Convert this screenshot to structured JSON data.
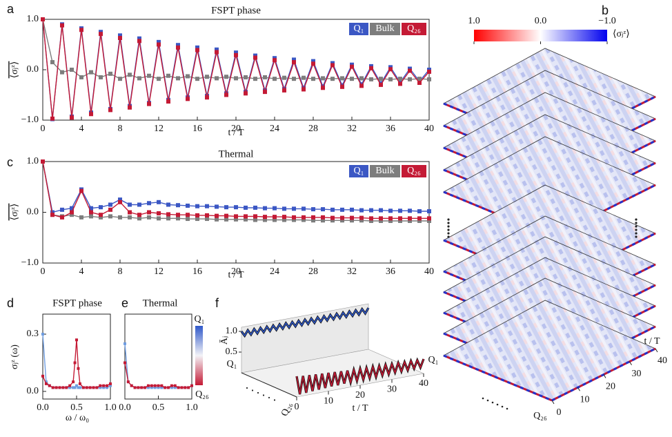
{
  "chart_data": [
    {
      "type": "line",
      "panel": "a",
      "title": "FSPT phase",
      "xlabel": "t / T",
      "ylabel": "⟨σⱼᶻ⟩",
      "x": [
        0,
        1,
        2,
        3,
        4,
        5,
        6,
        7,
        8,
        9,
        10,
        11,
        12,
        13,
        14,
        15,
        16,
        17,
        18,
        19,
        20,
        21,
        22,
        23,
        24,
        25,
        26,
        27,
        28,
        29,
        30,
        31,
        32,
        33,
        34,
        35,
        36,
        37,
        38,
        39,
        40
      ],
      "xlim": [
        0,
        40
      ],
      "xticks": [
        0,
        4,
        8,
        12,
        16,
        20,
        24,
        28,
        32,
        36,
        40
      ],
      "ylim": [
        -1,
        1
      ],
      "yticks": [
        {
          "value": -1,
          "label": "−1.0"
        },
        {
          "value": 0,
          "label": "0.0"
        },
        {
          "value": 1,
          "label": "1.0"
        }
      ],
      "legend": "upper right",
      "series": [
        {
          "name": "Q₁",
          "color": "#3b57c4",
          "values": [
            1.0,
            -0.98,
            0.9,
            -0.93,
            0.82,
            -0.85,
            0.75,
            -0.78,
            0.68,
            -0.72,
            0.62,
            -0.66,
            0.55,
            -0.6,
            0.49,
            -0.55,
            0.44,
            -0.52,
            0.4,
            -0.47,
            0.34,
            -0.44,
            0.28,
            -0.41,
            0.23,
            -0.38,
            0.2,
            -0.36,
            0.17,
            -0.33,
            0.13,
            -0.31,
            0.1,
            -0.29,
            0.07,
            -0.27,
            0.05,
            -0.25,
            0.02,
            -0.23,
            0.0
          ]
        },
        {
          "name": "Bulk",
          "color": "#7d7d7d",
          "values": [
            1.0,
            0.15,
            -0.05,
            0.0,
            -0.15,
            -0.05,
            -0.15,
            -0.08,
            -0.18,
            -0.1,
            -0.17,
            -0.12,
            -0.18,
            -0.12,
            -0.17,
            -0.13,
            -0.18,
            -0.14,
            -0.17,
            -0.14,
            -0.17,
            -0.15,
            -0.18,
            -0.15,
            -0.18,
            -0.16,
            -0.18,
            -0.16,
            -0.18,
            -0.17,
            -0.18,
            -0.17,
            -0.18,
            -0.17,
            -0.19,
            -0.18,
            -0.19,
            -0.18,
            -0.19,
            -0.18,
            -0.19
          ]
        },
        {
          "name": "Q₂₆",
          "color": "#c41a35",
          "values": [
            1.0,
            -0.97,
            0.88,
            -0.95,
            0.79,
            -0.88,
            0.71,
            -0.8,
            0.63,
            -0.75,
            0.57,
            -0.68,
            0.5,
            -0.63,
            0.44,
            -0.58,
            0.39,
            -0.55,
            0.35,
            -0.5,
            0.29,
            -0.47,
            0.24,
            -0.44,
            0.19,
            -0.41,
            0.15,
            -0.39,
            0.12,
            -0.36,
            0.09,
            -0.34,
            0.06,
            -0.32,
            0.03,
            -0.3,
            0.01,
            -0.28,
            -0.02,
            -0.26,
            -0.04
          ]
        }
      ]
    },
    {
      "type": "heatmap",
      "panel": "b",
      "colorbar_label": "⟨σⱼᶻ⟩",
      "clim": [
        1,
        -1
      ],
      "cticks": [
        {
          "value": 1,
          "label": "1.0"
        },
        {
          "value": 0,
          "label": "0.0"
        },
        {
          "value": -1,
          "label": "−1.0"
        }
      ],
      "xlabel": "t / T",
      "xlim": [
        0,
        40
      ],
      "xticks": [
        0,
        10,
        20,
        30,
        40
      ],
      "row_labels": [
        "Q₁",
        "Q₂₆"
      ]
    },
    {
      "type": "line",
      "panel": "c",
      "title": "Thermal",
      "xlabel": "t / T",
      "ylabel": "⟨σⱼᶻ⟩",
      "x": [
        0,
        1,
        2,
        3,
        4,
        5,
        6,
        7,
        8,
        9,
        10,
        11,
        12,
        13,
        14,
        15,
        16,
        17,
        18,
        19,
        20,
        21,
        22,
        23,
        24,
        25,
        26,
        27,
        28,
        29,
        30,
        31,
        32,
        33,
        34,
        35,
        36,
        37,
        38,
        39,
        40
      ],
      "xlim": [
        0,
        40
      ],
      "xticks": [
        0,
        4,
        8,
        12,
        16,
        20,
        24,
        28,
        32,
        36,
        40
      ],
      "ylim": [
        -1,
        1
      ],
      "yticks": [
        {
          "value": -1,
          "label": "−1.0"
        },
        {
          "value": 0,
          "label": "0.0"
        },
        {
          "value": 1,
          "label": "1.0"
        }
      ],
      "legend": "upper right",
      "series": [
        {
          "name": "Q₁",
          "color": "#3b57c4",
          "values": [
            1.0,
            0.0,
            0.05,
            0.08,
            0.45,
            0.08,
            0.1,
            0.15,
            0.25,
            0.15,
            0.15,
            0.18,
            0.2,
            0.15,
            0.14,
            0.13,
            0.12,
            0.12,
            0.11,
            0.1,
            0.1,
            0.09,
            0.09,
            0.08,
            0.08,
            0.07,
            0.07,
            0.07,
            0.06,
            0.06,
            0.05,
            0.05,
            0.05,
            0.04,
            0.04,
            0.04,
            0.03,
            0.03,
            0.03,
            0.02,
            0.02
          ]
        },
        {
          "name": "Bulk",
          "color": "#7d7d7d",
          "values": [
            1.0,
            -0.05,
            -0.08,
            -0.05,
            -0.1,
            -0.08,
            -0.1,
            -0.08,
            -0.1,
            -0.1,
            -0.12,
            -0.1,
            -0.12,
            -0.12,
            -0.12,
            -0.13,
            -0.13,
            -0.13,
            -0.14,
            -0.14,
            -0.14,
            -0.14,
            -0.15,
            -0.15,
            -0.15,
            -0.15,
            -0.15,
            -0.15,
            -0.16,
            -0.16,
            -0.16,
            -0.16,
            -0.16,
            -0.16,
            -0.17,
            -0.17,
            -0.17,
            -0.17,
            -0.17,
            -0.17,
            -0.17
          ]
        },
        {
          "name": "Q₂₆",
          "color": "#c41a35",
          "values": [
            1.0,
            -0.05,
            -0.1,
            0.0,
            0.42,
            0.0,
            -0.05,
            0.05,
            0.2,
            0.0,
            -0.05,
            0.0,
            -0.02,
            -0.04,
            -0.05,
            -0.05,
            -0.06,
            -0.06,
            -0.07,
            -0.07,
            -0.08,
            -0.08,
            -0.08,
            -0.09,
            -0.09,
            -0.09,
            -0.1,
            -0.1,
            -0.1,
            -0.1,
            -0.11,
            -0.11,
            -0.11,
            -0.11,
            -0.12,
            -0.12,
            -0.12,
            -0.12,
            -0.12,
            -0.12,
            -0.12
          ]
        }
      ]
    },
    {
      "type": "line",
      "panel": "d",
      "title": "FSPT phase",
      "xlabel": "ω / ω₀",
      "ylabel": "σⱼᶻ (ω)",
      "colorbar": true,
      "x": [
        0,
        0.05,
        0.1,
        0.15,
        0.2,
        0.25,
        0.3,
        0.35,
        0.4,
        0.45,
        0.475,
        0.5,
        0.525,
        0.55,
        0.6,
        0.65,
        0.7,
        0.75,
        0.8,
        0.85,
        0.9,
        0.95,
        1.0
      ],
      "xlim": [
        0,
        1
      ],
      "xticks": [
        {
          "value": 0,
          "label": "0.0"
        },
        0.5,
        {
          "value": 1,
          "label": "1.0"
        }
      ],
      "ylim": [
        -0.04,
        0.405
      ],
      "yticks": [
        {
          "value": 0,
          "label": "0.0"
        },
        0.3
      ],
      "series": [
        {
          "name": "Q₁",
          "color": "#6f9de0",
          "values": [
            0.3,
            0.05,
            0.03,
            0.02,
            0.02,
            0.02,
            0.02,
            0.02,
            0.02,
            0.02,
            0.02,
            0.03,
            0.02,
            0.02,
            0.02,
            0.02,
            0.02,
            0.02,
            0.02,
            0.02,
            0.02,
            0.02,
            0.03
          ]
        },
        {
          "name": "Q₂₆",
          "color": "#c41a35",
          "values": [
            0.08,
            0.04,
            0.03,
            0.02,
            0.02,
            0.02,
            0.02,
            0.02,
            0.03,
            0.05,
            0.15,
            0.27,
            0.12,
            0.04,
            0.02,
            0.02,
            0.02,
            0.02,
            0.02,
            0.03,
            0.03,
            0.03,
            0.04
          ]
        }
      ]
    },
    {
      "type": "line",
      "panel": "e",
      "title": "Thermal",
      "x": [
        0,
        0.05,
        0.1,
        0.15,
        0.2,
        0.25,
        0.3,
        0.35,
        0.4,
        0.45,
        0.5,
        0.55,
        0.6,
        0.65,
        0.7,
        0.75,
        0.8,
        0.85,
        0.9,
        0.95,
        1.0
      ],
      "xlim": [
        0,
        1
      ],
      "xticks": [
        {
          "value": 0,
          "label": "0.0"
        },
        0.5,
        {
          "value": 1,
          "label": "1.0"
        }
      ],
      "ylim": [
        -0.04,
        0.405
      ],
      "series": [
        {
          "color": "#6f9de0",
          "values": [
            0.25,
            0.05,
            0.03,
            0.02,
            0.02,
            0.02,
            0.02,
            0.02,
            0.02,
            0.02,
            0.02,
            0.02,
            0.02,
            0.02,
            0.02,
            0.02,
            0.02,
            0.02,
            0.02,
            0.02,
            0.03
          ]
        },
        {
          "color": "#c41a35",
          "values": [
            0.15,
            0.05,
            0.03,
            0.02,
            0.02,
            0.02,
            0.02,
            0.03,
            0.03,
            0.03,
            0.03,
            0.03,
            0.02,
            0.02,
            0.03,
            0.03,
            0.02,
            0.02,
            0.02,
            0.02,
            0.03
          ]
        }
      ]
    },
    {
      "type": "line3d",
      "panel": "f",
      "xlabel": "t / T",
      "ylabel": "Āⱼ",
      "x": [
        0,
        1,
        2,
        3,
        4,
        5,
        6,
        7,
        8,
        9,
        10,
        11,
        12,
        13,
        14,
        15,
        16,
        17,
        18,
        19,
        20,
        21,
        22,
        23,
        24,
        25,
        26,
        27,
        28,
        29,
        30,
        31,
        32,
        33,
        34,
        35,
        36,
        37,
        38,
        39,
        40
      ],
      "xlim": [
        0,
        40
      ],
      "xticks": [
        0,
        10,
        20,
        30,
        40
      ],
      "ylim": [
        0,
        1
      ],
      "yticks": [
        0.5,
        {
          "value": 1,
          "label": "1.0"
        }
      ],
      "series": [
        {
          "name": "Q₁",
          "color": "#2f58c9",
          "values": [
            1.0,
            0.88,
            1.0,
            0.88,
            1.0,
            0.88,
            1.0,
            0.88,
            1.0,
            0.88,
            1.0,
            0.88,
            1.0,
            0.88,
            1.0,
            0.88,
            1.0,
            0.88,
            1.0,
            0.88,
            1.0,
            0.88,
            1.0,
            0.88,
            1.0,
            0.88,
            1.0,
            0.88,
            1.0,
            0.88,
            1.0,
            0.88,
            1.0,
            0.88,
            1.0,
            0.88,
            1.0,
            0.88,
            1.0,
            0.88,
            1.0
          ]
        },
        {
          "name": "Q₂₆",
          "color": "#c41a35",
          "values": [
            0.5,
            0.05,
            0.48,
            0.06,
            0.47,
            0.07,
            0.46,
            0.08,
            0.45,
            0.09,
            0.44,
            0.1,
            0.43,
            0.1,
            0.42,
            0.11,
            0.41,
            0.11,
            0.4,
            0.12,
            0.4,
            0.12,
            0.39,
            0.13,
            0.39,
            0.13,
            0.38,
            0.14,
            0.38,
            0.14,
            0.37,
            0.15,
            0.37,
            0.15,
            0.36,
            0.15,
            0.36,
            0.16,
            0.35,
            0.16,
            0.35
          ]
        }
      ]
    }
  ]
}
